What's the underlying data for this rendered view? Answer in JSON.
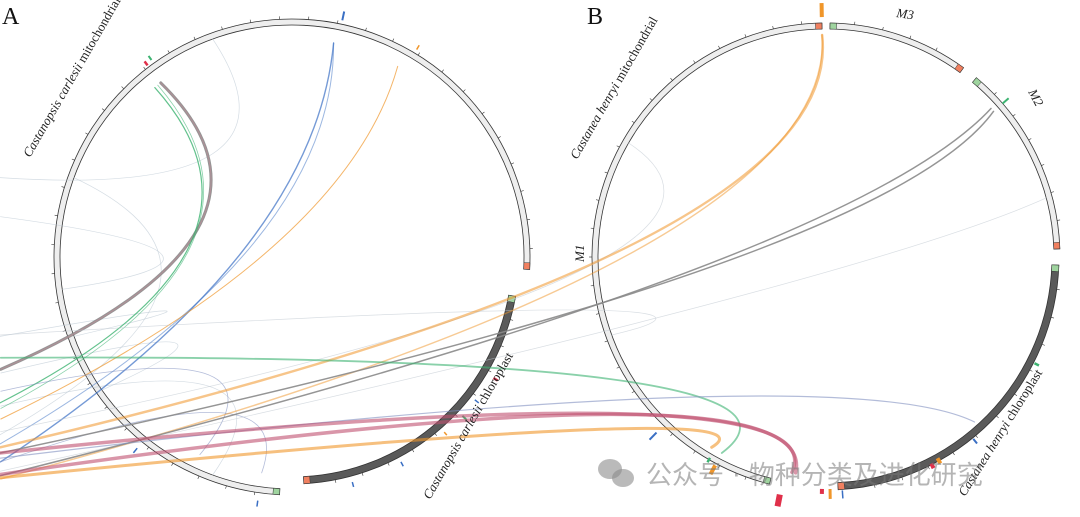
{
  "panel_a": {
    "letter": "A",
    "mito_label_italic": "Castanopsis carlesii",
    "mito_label_rest": " mitochondrial",
    "cp_label_italic": "Castanopsis carlesii",
    "cp_label_rest": " chloroplast"
  },
  "panel_b": {
    "letter": "B",
    "mito_label_italic": "Castanea henryi",
    "mito_label_rest": " mitochondrial",
    "cp_label_italic": "Castanea henryi",
    "cp_label_rest": " chloroplast",
    "segments": [
      "M1",
      "M2",
      "M3"
    ]
  },
  "watermark": "公众号 · 物种分类及进化研究",
  "colors": {
    "mito_ring": "#eeeeee",
    "cp_ring": "#5a5a5a",
    "gray_link": "#8a8a8a",
    "green": "#3cb371",
    "blue": "#3a6fc4",
    "orange": "#f0962a",
    "red": "#e0304a",
    "start_cap": "#9fd49f",
    "end_cap": "#f08060"
  }
}
